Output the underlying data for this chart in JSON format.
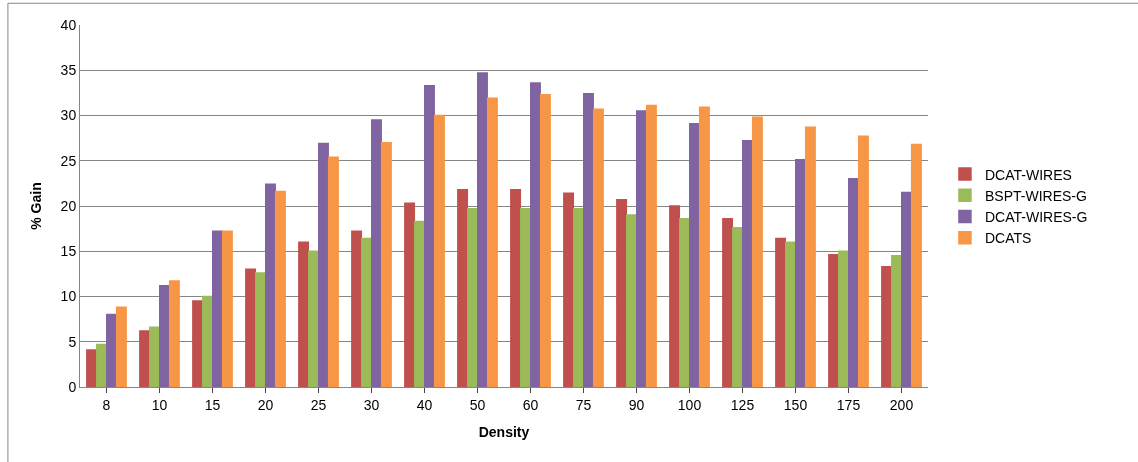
{
  "chart_data": {
    "type": "bar",
    "xlabel": "Density",
    "ylabel": "% Gain",
    "categories": [
      "8",
      "10",
      "15",
      "20",
      "25",
      "30",
      "40",
      "50",
      "60",
      "75",
      "90",
      "100",
      "125",
      "150",
      "175",
      "200"
    ],
    "series": [
      {
        "name": "DCAT-WIRES",
        "color": "#c0504d",
        "values": [
          4.1,
          6.2,
          9.5,
          13.0,
          16.0,
          17.2,
          20.3,
          21.8,
          21.8,
          21.4,
          20.7,
          20.0,
          18.6,
          16.4,
          14.6,
          13.3
        ]
      },
      {
        "name": "BSPT-WIRES-G",
        "color": "#9bbb59",
        "values": [
          4.7,
          6.6,
          10.0,
          12.6,
          15.0,
          16.4,
          18.3,
          19.7,
          19.7,
          19.7,
          19.0,
          18.6,
          17.6,
          16.0,
          15.0,
          14.5
        ]
      },
      {
        "name": "DCAT-WIRES-G",
        "color": "#8064a2",
        "values": [
          8.0,
          11.2,
          17.2,
          22.4,
          26.9,
          29.5,
          33.3,
          34.7,
          33.6,
          32.4,
          30.5,
          29.1,
          27.2,
          25.1,
          23.0,
          21.5
        ]
      },
      {
        "name": "DCATS",
        "color": "#f79646",
        "values": [
          8.8,
          11.7,
          17.2,
          21.6,
          25.4,
          27.0,
          30.0,
          31.9,
          32.3,
          30.7,
          31.1,
          30.9,
          29.8,
          28.7,
          27.7,
          26.8
        ]
      }
    ],
    "ylim": [
      0,
      40
    ],
    "yticks": [
      0,
      5,
      10,
      15,
      20,
      25,
      30,
      35,
      40
    ],
    "grid": "y",
    "legend": "right"
  }
}
